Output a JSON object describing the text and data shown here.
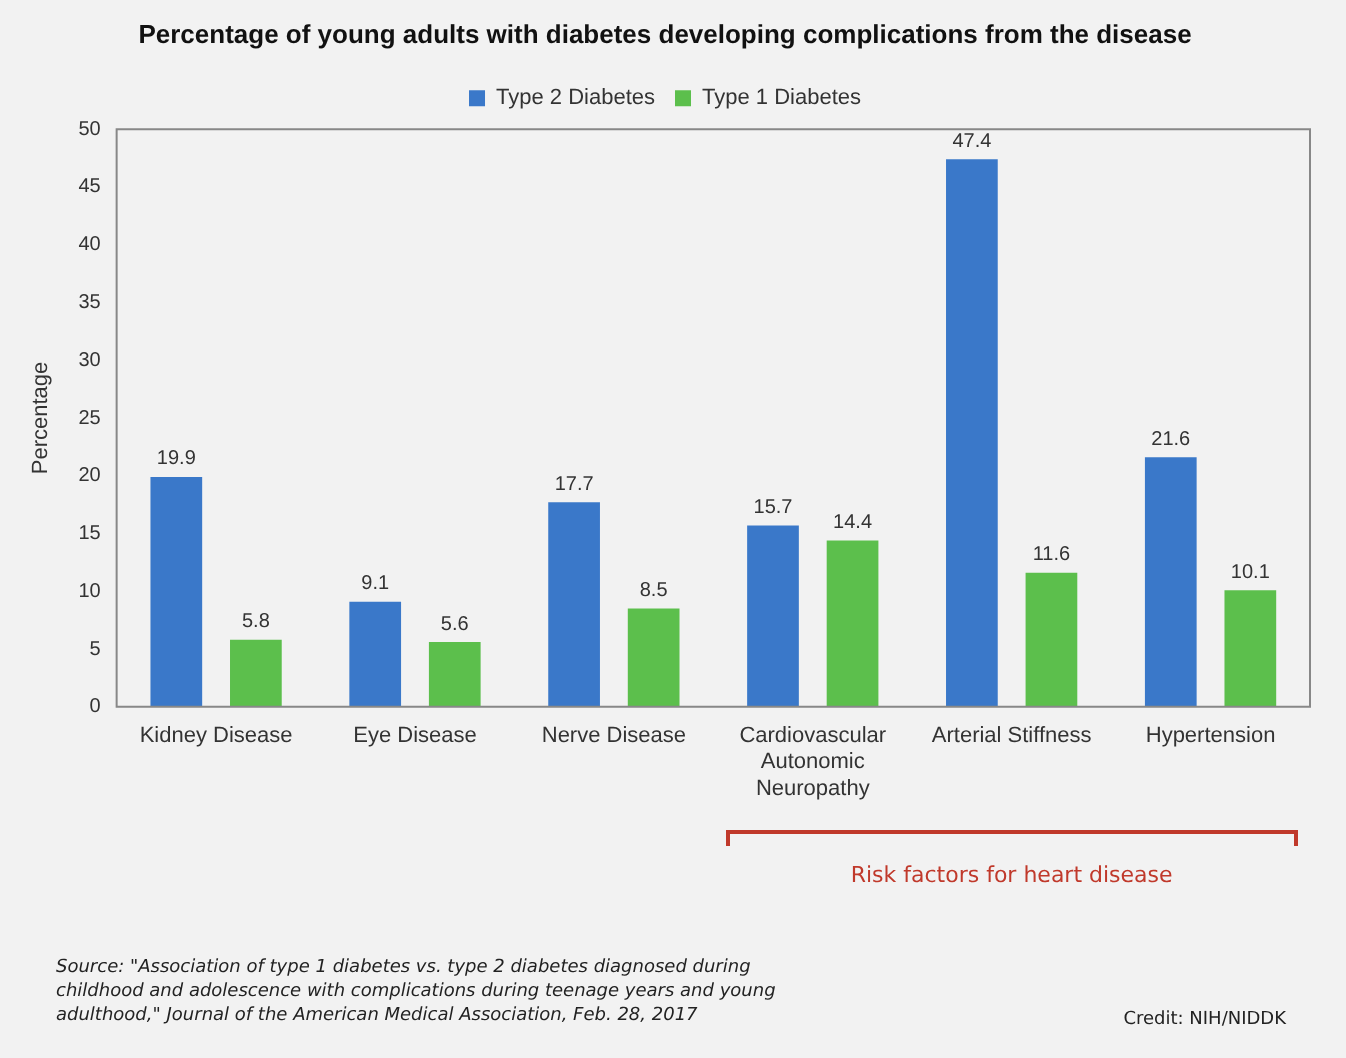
{
  "chart_data": {
    "type": "bar",
    "title": "Percentage of young adults with diabetes developing complications from the disease",
    "ylabel": "Percentage",
    "categories": [
      "Kidney Disease",
      "Eye Disease",
      "Nerve Disease",
      "Cardiovascular Autonomic Neuropathy",
      "Arterial Stiffness",
      "Hypertension"
    ],
    "series": [
      {
        "name": "Type 2 Diabetes",
        "color": "#3a78c9",
        "values": [
          19.9,
          9.1,
          17.7,
          15.7,
          47.4,
          21.6
        ]
      },
      {
        "name": "Type 1 Diabetes",
        "color": "#5cbf4c",
        "values": [
          5.8,
          5.6,
          8.5,
          14.4,
          11.6,
          10.1
        ]
      }
    ],
    "ylim": [
      0,
      50
    ],
    "yticks": [
      0,
      5,
      10,
      15,
      20,
      25,
      30,
      35,
      40,
      45,
      50
    ],
    "grid": false,
    "legend": "top",
    "data_labels": true,
    "annotations": [
      "Risk factors for heart disease",
      "Source: \"Association of type 1 diabetes vs. type 2 diabetes diagnosed during childhood and adolescence with complications during teenage years and young adulthood,\" Journal of the American Medical Association, Feb. 28, 2017",
      "Credit: NIH/NIDDK"
    ]
  }
}
